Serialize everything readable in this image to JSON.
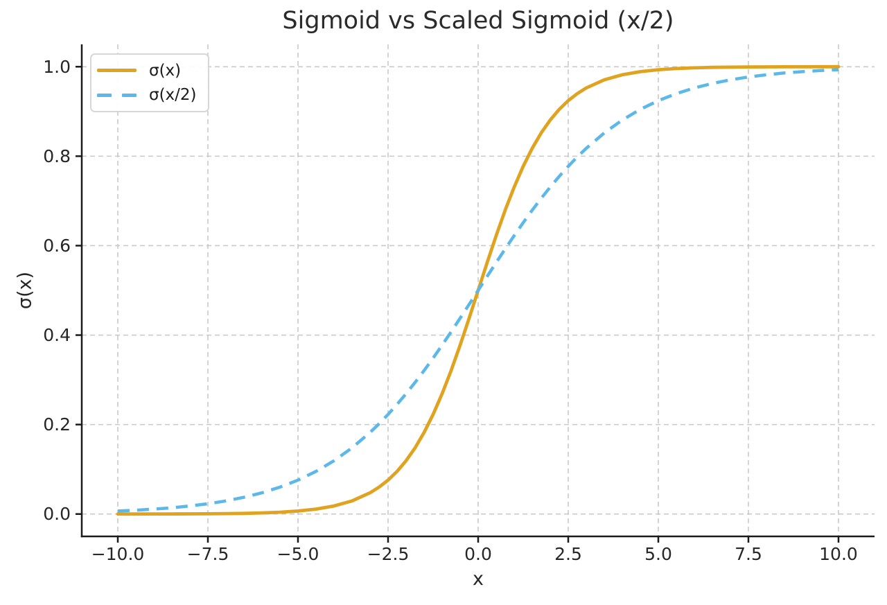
{
  "colors": {
    "background": "#ffffff",
    "grid": "#c9c9c9",
    "spine": "#1a1a1a",
    "text": "#262626",
    "legend_border": "#d7d7d7"
  },
  "chart_data": {
    "type": "line",
    "title": "Sigmoid vs Scaled Sigmoid (x/2)",
    "xlabel": "x",
    "ylabel": "σ(x)",
    "grid": "dashed",
    "legend_position": "upper left",
    "xlim": [
      -11,
      11
    ],
    "ylim": [
      -0.05,
      1.05
    ],
    "xticks": {
      "values": [
        -10.0,
        -7.5,
        -5.0,
        -2.5,
        0.0,
        2.5,
        5.0,
        7.5,
        10.0
      ],
      "labels": [
        "−10.0",
        "−7.5",
        "−5.0",
        "−2.5",
        "0.0",
        "2.5",
        "5.0",
        "7.5",
        "10.0"
      ]
    },
    "yticks": {
      "values": [
        0.0,
        0.2,
        0.4,
        0.6,
        0.8,
        1.0
      ],
      "labels": [
        "0.0",
        "0.2",
        "0.4",
        "0.6",
        "0.8",
        "1.0"
      ]
    },
    "x": [
      -10.0,
      -9.5,
      -9.0,
      -8.5,
      -8.0,
      -7.5,
      -7.0,
      -6.5,
      -6.0,
      -5.5,
      -5.0,
      -4.5,
      -4.0,
      -3.5,
      -3.0,
      -2.75,
      -2.5,
      -2.25,
      -2.0,
      -1.75,
      -1.5,
      -1.25,
      -1.0,
      -0.75,
      -0.5,
      -0.25,
      0.0,
      0.25,
      0.5,
      0.75,
      1.0,
      1.25,
      1.5,
      1.75,
      2.0,
      2.25,
      2.5,
      2.75,
      3.0,
      3.5,
      4.0,
      4.5,
      5.0,
      5.5,
      6.0,
      6.5,
      7.0,
      7.5,
      8.0,
      8.5,
      9.0,
      9.5,
      10.0
    ],
    "series": [
      {
        "name": "σ(x)",
        "style": "solid",
        "color": "#E0A320",
        "values": [
          5e-05,
          7e-05,
          0.00012,
          0.0002,
          0.00034,
          0.00055,
          0.00091,
          0.0015,
          0.00247,
          0.00407,
          0.00669,
          0.01099,
          0.01799,
          0.02931,
          0.04743,
          0.06009,
          0.07586,
          0.09535,
          0.1192,
          0.14805,
          0.18243,
          0.2227,
          0.26894,
          0.32082,
          0.37754,
          0.43782,
          0.5,
          0.56218,
          0.62246,
          0.67918,
          0.73106,
          0.7773,
          0.81757,
          0.85195,
          0.8808,
          0.90465,
          0.92414,
          0.93991,
          0.95257,
          0.97069,
          0.98201,
          0.98901,
          0.99331,
          0.99593,
          0.99753,
          0.9985,
          0.99909,
          0.99945,
          0.99966,
          0.9998,
          0.99988,
          0.99993,
          0.99995
        ]
      },
      {
        "name": "σ(x/2)",
        "style": "dashed",
        "color": "#5BB8E8",
        "values": [
          0.00669,
          0.00858,
          0.01099,
          0.01406,
          0.01799,
          0.02298,
          0.02931,
          0.03733,
          0.04743,
          0.06009,
          0.07586,
          0.09535,
          0.1192,
          0.14805,
          0.18243,
          0.20181,
          0.2227,
          0.24508,
          0.26894,
          0.29422,
          0.32082,
          0.34865,
          0.37754,
          0.40733,
          0.43782,
          0.46878,
          0.5,
          0.53122,
          0.56218,
          0.59267,
          0.62246,
          0.65135,
          0.67918,
          0.70578,
          0.73106,
          0.75492,
          0.7773,
          0.79819,
          0.81757,
          0.85195,
          0.8808,
          0.90465,
          0.92414,
          0.93991,
          0.95257,
          0.96267,
          0.97069,
          0.97702,
          0.98201,
          0.98594,
          0.98901,
          0.99142,
          0.99331
        ]
      }
    ]
  }
}
